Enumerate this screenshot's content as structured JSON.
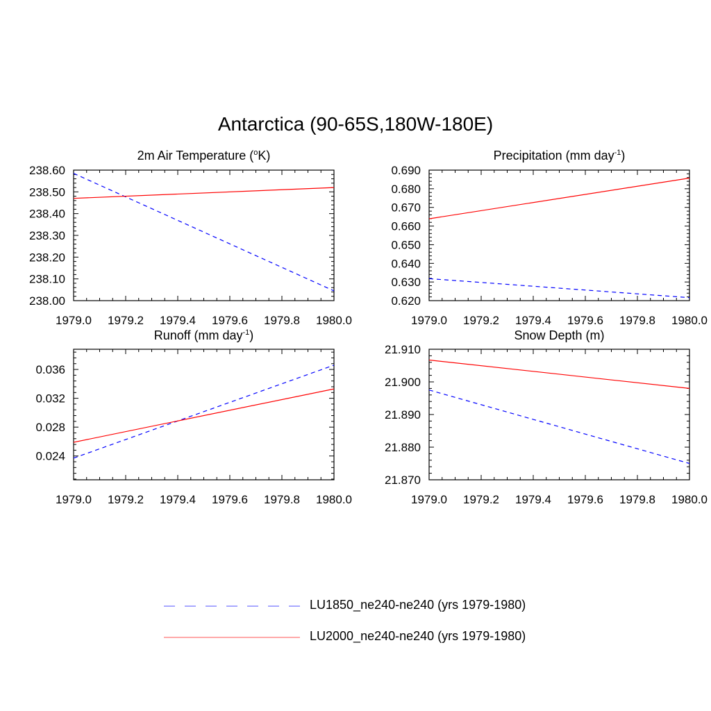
{
  "figure": {
    "title": "Antarctica (90-65S,180W-180E)"
  },
  "colors": {
    "LU1850": "#0000ff",
    "LU2000": "#ff0000",
    "axes": "#000000"
  },
  "legend": {
    "items": [
      {
        "label": "LU1850_ne240-ne240 (yrs 1979-1980)",
        "color": "#0000ff",
        "style": "dashed"
      },
      {
        "label": "LU2000_ne240-ne240 (yrs 1979-1980)",
        "color": "#ff0000",
        "style": "solid"
      }
    ]
  },
  "chart_data": [
    {
      "type": "line",
      "title_main": "2m Air Temperature (",
      "title_sup": "o",
      "title_tail": "K)",
      "xlim": [
        1979.0,
        1980.0
      ],
      "xticks": [
        "1979.0",
        "1979.2",
        "1979.4",
        "1979.6",
        "1979.8",
        "1980.0"
      ],
      "ylim": [
        238.0,
        238.6
      ],
      "yticks": [
        "238.00",
        "238.10",
        "238.20",
        "238.30",
        "238.40",
        "238.50",
        "238.60"
      ],
      "series": [
        {
          "name": "LU1850_ne240-ne240 (yrs 1979-1980)",
          "x": [
            1979.0,
            1980.0
          ],
          "y": [
            238.585,
            238.045
          ]
        },
        {
          "name": "LU2000_ne240-ne240 (yrs 1979-1980)",
          "x": [
            1979.0,
            1980.0
          ],
          "y": [
            238.47,
            238.52
          ]
        }
      ]
    },
    {
      "type": "line",
      "title_main": "Precipitation (mm day",
      "title_sup": "-1",
      "title_tail": ")",
      "xlim": [
        1979.0,
        1980.0
      ],
      "xticks": [
        "1979.0",
        "1979.2",
        "1979.4",
        "1979.6",
        "1979.8",
        "1980.0"
      ],
      "ylim": [
        0.62,
        0.69
      ],
      "yticks": [
        "0.620",
        "0.630",
        "0.640",
        "0.650",
        "0.660",
        "0.670",
        "0.680",
        "0.690"
      ],
      "series": [
        {
          "name": "LU1850_ne240-ne240 (yrs 1979-1980)",
          "x": [
            1979.0,
            1980.0
          ],
          "y": [
            0.6318,
            0.6216
          ]
        },
        {
          "name": "LU2000_ne240-ne240 (yrs 1979-1980)",
          "x": [
            1979.0,
            1980.0
          ],
          "y": [
            0.6639,
            0.6857
          ]
        }
      ]
    },
    {
      "type": "line",
      "title_main": "Runoff (mm day",
      "title_sup": "-1",
      "title_tail": ")",
      "xlim": [
        1979.0,
        1980.0
      ],
      "xticks": [
        "1979.0",
        "1979.2",
        "1979.4",
        "1979.6",
        "1979.8",
        "1980.0"
      ],
      "ylim": [
        0.0207,
        0.0388
      ],
      "yticks": [
        "0.024",
        "0.028",
        "0.032",
        "0.036"
      ],
      "series": [
        {
          "name": "LU1850_ne240-ne240 (yrs 1979-1980)",
          "x": [
            1979.0,
            1980.0
          ],
          "y": [
            0.0237,
            0.0366
          ]
        },
        {
          "name": "LU2000_ne240-ne240 (yrs 1979-1980)",
          "x": [
            1979.0,
            1980.0
          ],
          "y": [
            0.0259,
            0.0333
          ]
        }
      ]
    },
    {
      "type": "line",
      "title_main": "Snow Depth (m)",
      "title_sup": "",
      "title_tail": "",
      "xlim": [
        1979.0,
        1980.0
      ],
      "xticks": [
        "1979.0",
        "1979.2",
        "1979.4",
        "1979.6",
        "1979.8",
        "1980.0"
      ],
      "ylim": [
        21.87,
        21.91
      ],
      "yticks": [
        "21.870",
        "21.880",
        "21.890",
        "21.900",
        "21.910"
      ],
      "series": [
        {
          "name": "LU1850_ne240-ne240 (yrs 1979-1980)",
          "x": [
            1979.0,
            1980.0
          ],
          "y": [
            21.8975,
            21.875
          ]
        },
        {
          "name": "LU2000_ne240-ne240 (yrs 1979-1980)",
          "x": [
            1979.0,
            1980.0
          ],
          "y": [
            21.9067,
            21.898
          ]
        }
      ]
    }
  ]
}
